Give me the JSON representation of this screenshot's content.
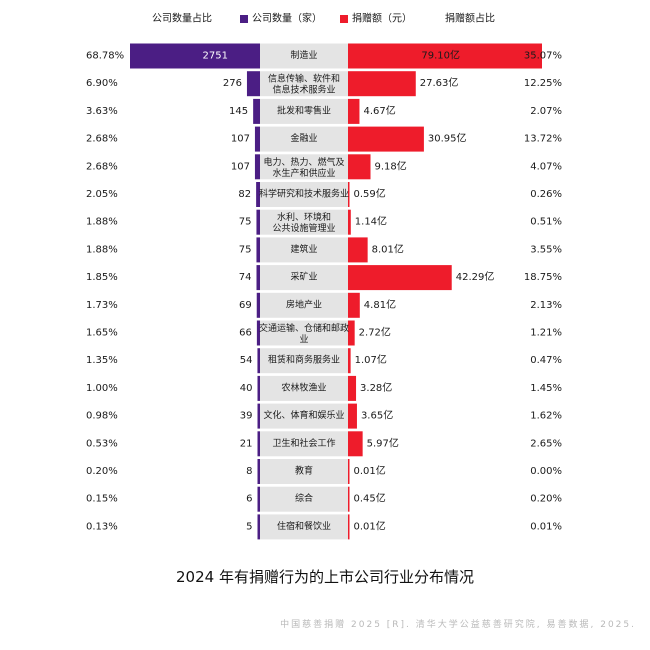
{
  "chart_data": {
    "type": "bar",
    "title": "2024 年有捐赠行为的上市公司行业分布情况",
    "source": "中国慈善捐赠 2025 [R]. 清华大学公益慈善研究院, 易善数据, 2025.",
    "legend": {
      "placement": "top",
      "entries": [
        {
          "label": "公司数量占比"
        },
        {
          "label": "公司数量（家）",
          "color": "#4b1e84"
        },
        {
          "label": "捐赠额（元）",
          "color": "#ee1c2b"
        },
        {
          "label": "捐赠额占比"
        }
      ]
    },
    "category_box_color": "#e4e4e4",
    "categories": [
      "制造业",
      "信息传输、软件和\n信息技术服务业",
      "批发和零售业",
      "金融业",
      "电力、热力、燃气及\n水生产和供应业",
      "科学研究和技术服务业",
      "水利、环境和\n公共设施管理业",
      "建筑业",
      "采矿业",
      "房地产业",
      "交通运输、仓储和邮政\n业",
      "租赁和商务服务业",
      "农林牧渔业",
      "文化、体育和娱乐业",
      "卫生和社会工作",
      "教育",
      "综合",
      "住宿和餐饮业"
    ],
    "series": [
      {
        "name": "公司数量（家）",
        "color": "#4b1e84",
        "values": [
          2751,
          276,
          145,
          107,
          107,
          82,
          75,
          75,
          74,
          69,
          66,
          54,
          40,
          39,
          21,
          8,
          6,
          5
        ]
      },
      {
        "name": "捐赠额（元）",
        "unit": "亿",
        "color": "#ee1c2b",
        "values": [
          79.1,
          27.63,
          4.67,
          30.95,
          9.18,
          0.59,
          1.14,
          8.01,
          42.29,
          4.81,
          2.72,
          1.07,
          3.28,
          3.65,
          5.97,
          0.01,
          0.45,
          0.01
        ]
      }
    ],
    "count_share": [
      "68.78%",
      "6.90%",
      "3.63%",
      "2.68%",
      "2.68%",
      "2.05%",
      "1.88%",
      "1.88%",
      "1.85%",
      "1.73%",
      "1.65%",
      "1.35%",
      "1.00%",
      "0.98%",
      "0.53%",
      "0.20%",
      "0.15%",
      "0.13%"
    ],
    "donation_share": [
      "35.07%",
      "12.25%",
      "2.07%",
      "13.72%",
      "4.07%",
      "0.26%",
      "0.51%",
      "3.55%",
      "18.75%",
      "2.13%",
      "1.21%",
      "0.47%",
      "1.45%",
      "1.62%",
      "2.65%",
      "0.00%",
      "0.20%",
      "0.01%"
    ]
  }
}
